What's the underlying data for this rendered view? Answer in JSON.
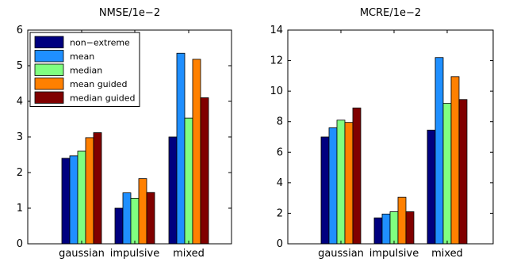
{
  "chart_data": [
    {
      "type": "bar",
      "title": "NMSE/1e−2",
      "xlabel": "",
      "ylabel": "",
      "categories": [
        "gaussian",
        "impulsive",
        "mixed"
      ],
      "ylim": [
        0,
        6
      ],
      "yticks": [
        "0",
        "1",
        "2",
        "3",
        "4",
        "5",
        "6"
      ],
      "legend": "top-left",
      "grid": false,
      "series": [
        {
          "name": "non−extreme",
          "color": "#00007f",
          "values": [
            2.4,
            1.0,
            3.0
          ]
        },
        {
          "name": "mean",
          "color": "#1f8fff",
          "values": [
            2.47,
            1.43,
            5.35
          ]
        },
        {
          "name": "median",
          "color": "#80ff80",
          "values": [
            2.6,
            1.28,
            3.53
          ]
        },
        {
          "name": "mean guided",
          "color": "#ff8000",
          "values": [
            2.98,
            1.83,
            5.18
          ]
        },
        {
          "name": "median guided",
          "color": "#800000",
          "values": [
            3.12,
            1.44,
            4.1
          ]
        }
      ]
    },
    {
      "type": "bar",
      "title": "MCRE/1e−2",
      "xlabel": "",
      "ylabel": "",
      "categories": [
        "gaussian",
        "impulsive",
        "mixed"
      ],
      "ylim": [
        0,
        14
      ],
      "yticks": [
        "0",
        "2",
        "4",
        "6",
        "8",
        "10",
        "12",
        "14"
      ],
      "grid": false,
      "series": [
        {
          "name": "non−extreme",
          "color": "#00007f",
          "values": [
            7.0,
            1.7,
            7.45
          ]
        },
        {
          "name": "mean",
          "color": "#1f8fff",
          "values": [
            7.6,
            1.95,
            12.2
          ]
        },
        {
          "name": "median",
          "color": "#80ff80",
          "values": [
            8.1,
            2.1,
            9.2
          ]
        },
        {
          "name": "mean guided",
          "color": "#ff8000",
          "values": [
            7.95,
            3.05,
            10.95
          ]
        },
        {
          "name": "median guided",
          "color": "#800000",
          "values": [
            8.9,
            2.1,
            9.45
          ]
        }
      ]
    }
  ]
}
